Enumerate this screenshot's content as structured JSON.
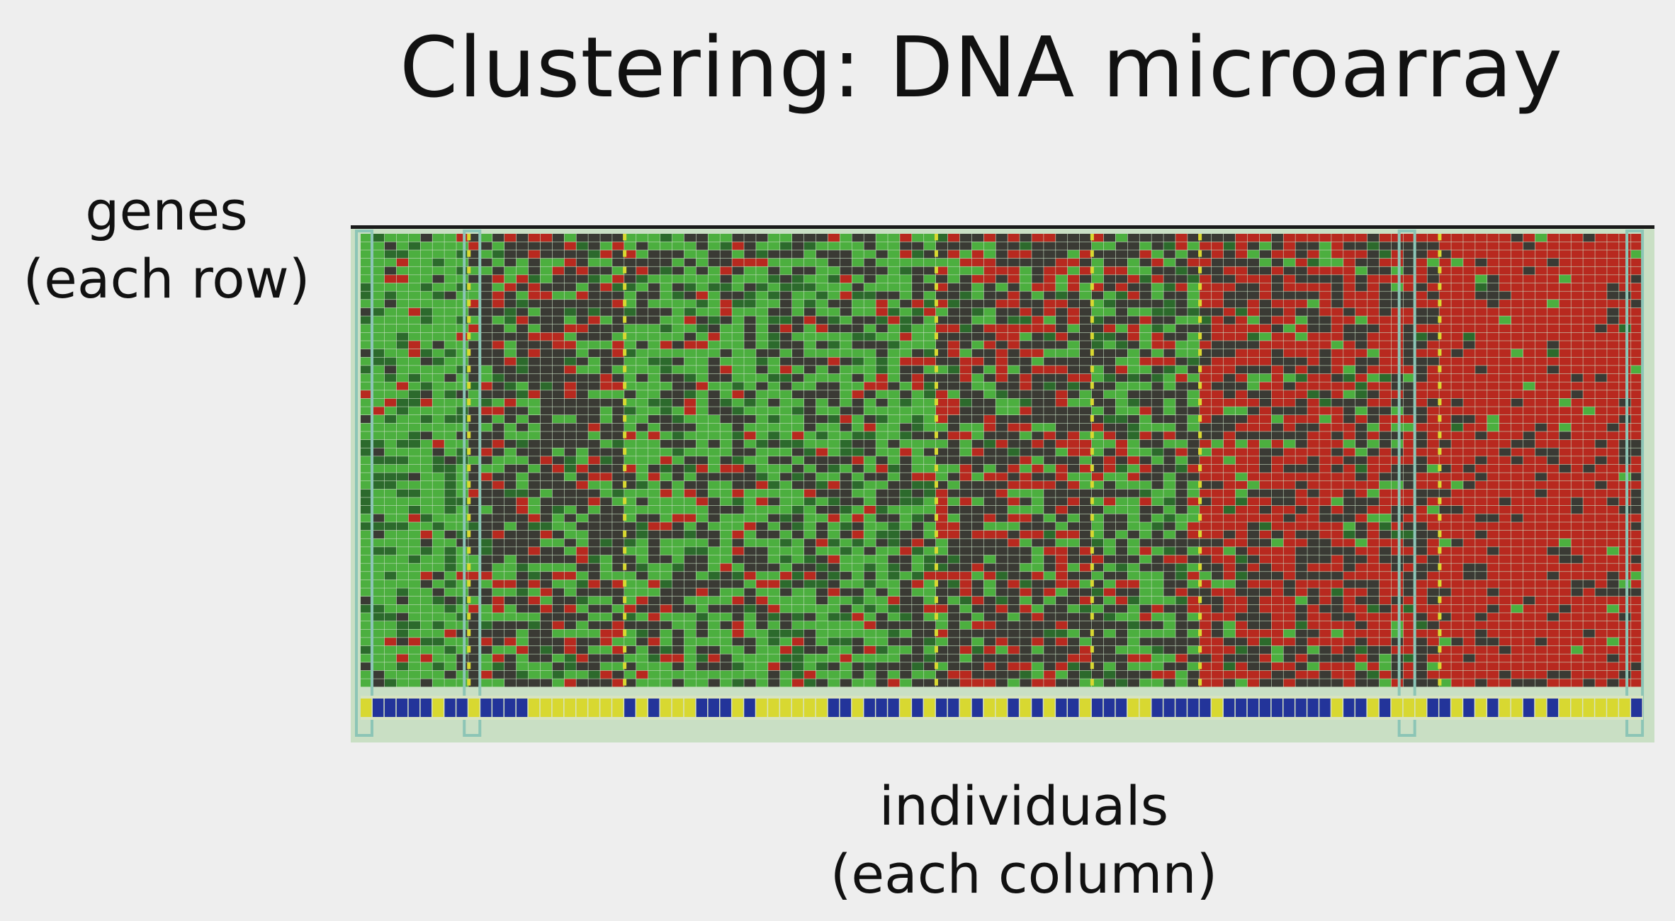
{
  "slide": {
    "title": "Clustering: DNA microarray",
    "row_label": {
      "line1": "genes",
      "line2": "(each row)"
    },
    "column_label": {
      "line1": "individuals",
      "line2": "(each column)"
    }
  },
  "colors": {
    "background": "#eeeeee",
    "bright_green": "#4caf3f",
    "dark_green": "#2c6a2c",
    "dark_cell": "#3a3a34",
    "red": "#b8291f",
    "yellow_marker": "#d8d831",
    "blue_marker": "#23349a",
    "frame_teal": "#8cc5b6",
    "top_line": "#1a1a1a"
  },
  "heatmap": {
    "n_rows": 55,
    "blocks": [
      {
        "cols": 9,
        "green": 0.85,
        "dark": 0.1,
        "red": 0.05
      },
      {
        "cols": 13,
        "green": 0.3,
        "dark": 0.55,
        "red": 0.15
      },
      {
        "cols": 26,
        "green": 0.6,
        "dark": 0.32,
        "red": 0.08
      },
      {
        "cols": 13,
        "green": 0.22,
        "dark": 0.5,
        "red": 0.28
      },
      {
        "cols": 9,
        "green": 0.42,
        "dark": 0.45,
        "red": 0.13
      },
      {
        "cols": 20,
        "green": 0.1,
        "dark": 0.35,
        "red": 0.55
      },
      {
        "cols": 17,
        "green": 0.04,
        "dark": 0.16,
        "red": 0.8
      }
    ],
    "bottom_bar": [
      "Y",
      "B",
      "B",
      "B",
      "B",
      "B",
      "Y",
      "B",
      "B",
      "Y",
      "B",
      "B",
      "B",
      "B",
      "Y",
      "Y",
      "Y",
      "Y",
      "Y",
      "Y",
      "Y",
      "Y",
      "B",
      "Y",
      "B",
      "Y",
      "Y",
      "Y",
      "B",
      "B",
      "B",
      "Y",
      "B",
      "Y",
      "Y",
      "Y",
      "Y",
      "Y",
      "Y",
      "B",
      "B",
      "Y",
      "B",
      "B",
      "B",
      "Y",
      "B",
      "Y",
      "B",
      "B",
      "Y",
      "B",
      "Y",
      "Y",
      "B",
      "Y",
      "B",
      "Y",
      "B",
      "B",
      "Y",
      "B",
      "B",
      "B",
      "Y",
      "Y",
      "B",
      "B",
      "B",
      "B",
      "B",
      "Y",
      "B",
      "B",
      "B",
      "B",
      "B",
      "B",
      "B",
      "B",
      "B",
      "Y",
      "B",
      "B",
      "Y",
      "B",
      "Y",
      "Y",
      "Y",
      "B",
      "B",
      "Y",
      "B",
      "Y",
      "B",
      "Y",
      "Y",
      "B",
      "Y",
      "B",
      "Y",
      "Y",
      "Y",
      "Y",
      "Y",
      "Y",
      "B"
    ]
  }
}
